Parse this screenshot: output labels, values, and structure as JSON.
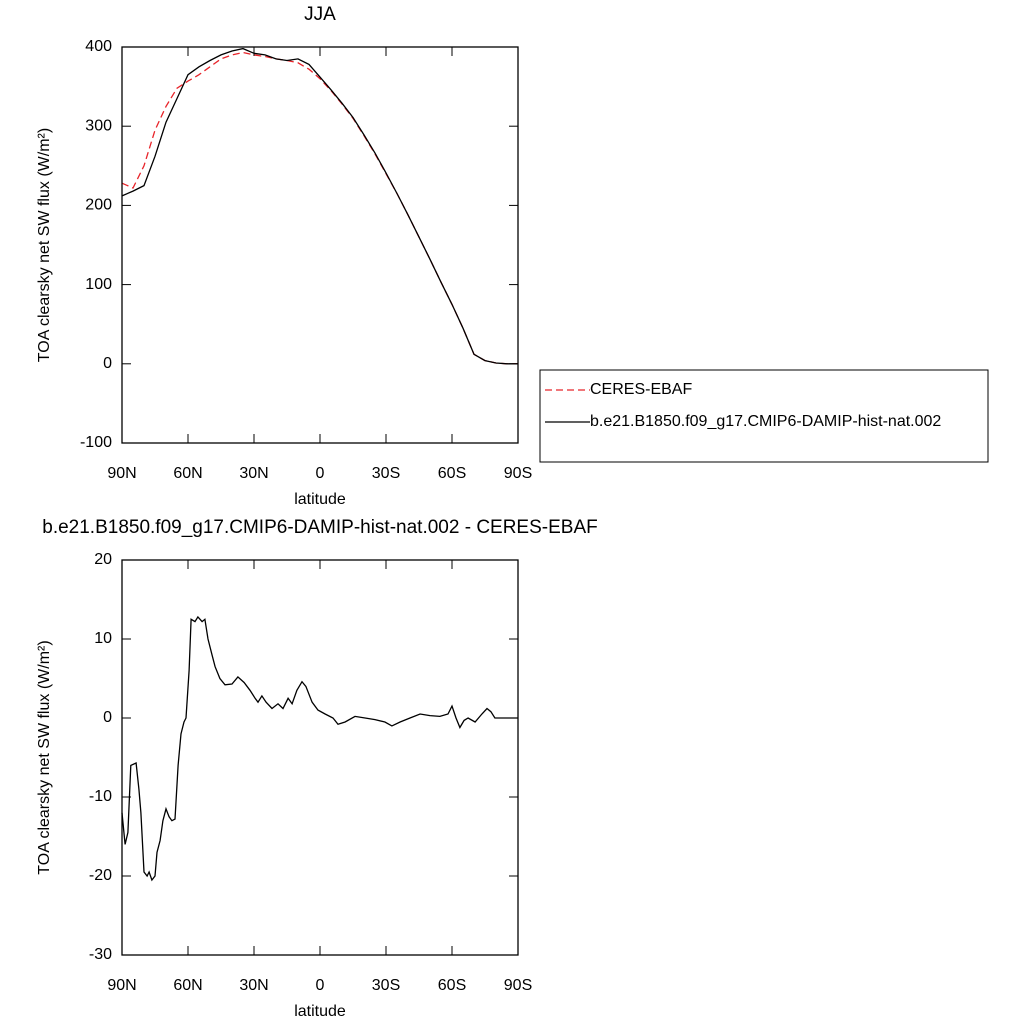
{
  "chart_data": [
    {
      "type": "line",
      "title": "JJA",
      "xlabel": "latitude",
      "ylabel": "TOA clearsky net SW flux (W/m²)",
      "x": [
        90,
        85,
        80,
        75,
        70,
        65,
        60,
        55,
        50,
        45,
        40,
        35,
        30,
        25,
        20,
        15,
        10,
        5,
        0,
        -5,
        -10,
        -15,
        -20,
        -25,
        -30,
        -35,
        -40,
        -45,
        -50,
        -55,
        -60,
        -65,
        -70,
        -75,
        -80,
        -85,
        -90
      ],
      "series": [
        {
          "name": "CERES-EBAF",
          "color": "#e8242a",
          "dashed": true,
          "values": [
            228,
            222,
            250,
            295,
            325,
            348,
            357,
            365,
            375,
            385,
            390,
            393,
            390,
            388,
            385,
            383,
            380,
            372,
            360,
            345,
            328,
            310,
            288,
            265,
            240,
            215,
            188,
            160,
            132,
            103,
            75,
            45,
            12,
            4,
            1,
            0,
            0
          ]
        },
        {
          "name": "b.e21.B1850.f09_g17.CMIP6-DAMIP-hist-nat.002",
          "color": "#000000",
          "dashed": false,
          "values": [
            212,
            218,
            225,
            262,
            305,
            335,
            365,
            375,
            383,
            390,
            395,
            398,
            392,
            390,
            385,
            383,
            385,
            378,
            362,
            346,
            329,
            311,
            289,
            266,
            241,
            215,
            188,
            160,
            132,
            103,
            75,
            45,
            12,
            4,
            1,
            0,
            0
          ]
        }
      ],
      "xlim": [
        90,
        -90
      ],
      "xticks": [
        {
          "value": 90,
          "label": "90N"
        },
        {
          "value": 60,
          "label": "60N"
        },
        {
          "value": 30,
          "label": "30N"
        },
        0,
        {
          "value": -30,
          "label": "30S"
        },
        {
          "value": -60,
          "label": "60S"
        },
        {
          "value": -90,
          "label": "90S"
        }
      ],
      "ylim": [
        -100,
        400
      ],
      "yticks": [
        -100,
        0,
        100,
        200,
        300,
        400
      ]
    },
    {
      "type": "line",
      "title": "b.e21.B1850.f09_g17.CMIP6-DAMIP-hist-nat.002 - CERES-EBAF",
      "xlabel": "latitude",
      "ylabel": "TOA clearsky net SW flux (W/m²)",
      "x": [
        90,
        88.6,
        87.3,
        86,
        83.6,
        82.3,
        81.4,
        80,
        78.6,
        77.7,
        76.4,
        75,
        74.1,
        72.7,
        71.4,
        70,
        68.6,
        67.3,
        65.9,
        64.5,
        63.2,
        61.8,
        60.9,
        59.5,
        58.6,
        56.8,
        55.5,
        53.6,
        52.3,
        50.9,
        49.1,
        47.7,
        45.5,
        43.2,
        40,
        37.3,
        34.5,
        31.8,
        29.5,
        28.2,
        26.4,
        24.5,
        21.8,
        19.1,
        16.8,
        14.5,
        12.7,
        10.5,
        8.2,
        6.4,
        3.6,
        0.9,
        -2.3,
        -5.9,
        -8.2,
        -11.4,
        -15.9,
        -20.5,
        -25,
        -29.5,
        -32.7,
        -36.4,
        -40.9,
        -45.5,
        -50,
        -54.5,
        -58.2,
        -60,
        -61.8,
        -63.6,
        -65.5,
        -67.3,
        -70.5,
        -73.6,
        -75.9,
        -77.7,
        -79.5,
        -90
      ],
      "series": [
        {
          "color": "#000000",
          "dashed": false,
          "values": [
            -12,
            -16,
            -14.5,
            -6,
            -5.7,
            -9,
            -12,
            -19.5,
            -20,
            -19.5,
            -20.5,
            -20,
            -17,
            -15.5,
            -13,
            -11.5,
            -12.5,
            -13,
            -12.8,
            -6,
            -2,
            -0.5,
            0,
            6,
            12.5,
            12.2,
            12.8,
            12.2,
            12.5,
            10,
            8,
            6.5,
            5,
            4.2,
            4.3,
            5.2,
            4.5,
            3.5,
            2.5,
            2,
            2.8,
            2,
            1.2,
            1.8,
            1.2,
            2.5,
            1.8,
            3.5,
            4.6,
            4,
            2,
            1,
            0.5,
            0,
            -0.8,
            -0.5,
            0.2,
            0,
            -0.2,
            -0.5,
            -1,
            -0.5,
            0,
            0.5,
            0.3,
            0.2,
            0.5,
            1.5,
            0,
            -1.2,
            -0.3,
            0,
            -0.5,
            0.5,
            1.2,
            0.8,
            0,
            0
          ]
        }
      ],
      "xlim": [
        90,
        -90
      ],
      "xticks": [
        {
          "value": 90,
          "label": "90N"
        },
        {
          "value": 60,
          "label": "60N"
        },
        {
          "value": 30,
          "label": "30N"
        },
        0,
        {
          "value": -30,
          "label": "30S"
        },
        {
          "value": -60,
          "label": "60S"
        },
        {
          "value": -90,
          "label": "90S"
        }
      ],
      "ylim": [
        -30,
        20
      ],
      "yticks": [
        -30,
        -20,
        -10,
        0,
        10,
        20
      ]
    }
  ]
}
